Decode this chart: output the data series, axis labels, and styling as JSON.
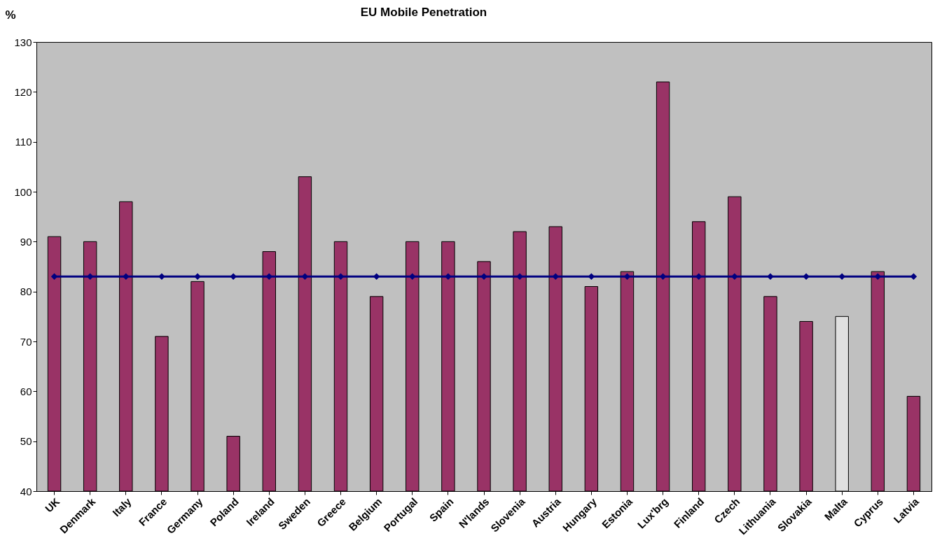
{
  "chart_data": {
    "type": "bar",
    "title": "EU Mobile Penetration",
    "ylabel": "%",
    "categories": [
      "UK",
      "Denmark",
      "Italy",
      "France",
      "Germany",
      "Poland",
      "Ireland",
      "Sweden",
      "Greece",
      "Belgium",
      "Portugal",
      "Spain",
      "N'lands",
      "Slovenia",
      "Austria",
      "Hungary",
      "Estonia",
      "Lux'brg",
      "Finland",
      "Czech",
      "Lithuania",
      "Slovakia",
      "Malta",
      "Cyprus",
      "Latvia"
    ],
    "series": [
      {
        "values": [
          91,
          90,
          98,
          71,
          82,
          51,
          88,
          103,
          90,
          79,
          90,
          90,
          86,
          92,
          93,
          81,
          84,
          122,
          94,
          99,
          79,
          74,
          75,
          84,
          59
        ],
        "colors": [
          "#993366",
          "#993366",
          "#993366",
          "#993366",
          "#993366",
          "#993366",
          "#993366",
          "#993366",
          "#993366",
          "#993366",
          "#993366",
          "#993366",
          "#993366",
          "#993366",
          "#993366",
          "#993366",
          "#993366",
          "#993366",
          "#993366",
          "#993366",
          "#993366",
          "#993366",
          "#e0e0e0",
          "#993366",
          "#993366"
        ]
      },
      {
        "type": "line",
        "color": "#000080",
        "marker": "diamond",
        "values": [
          83,
          83,
          83,
          83,
          83,
          83,
          83,
          83,
          83,
          83,
          83,
          83,
          83,
          83,
          83,
          83,
          83,
          83,
          83,
          83,
          83,
          83,
          83,
          83,
          83
        ]
      }
    ],
    "ylim": [
      40,
      130
    ],
    "yticks": [
      40,
      50,
      60,
      70,
      80,
      90,
      100,
      110,
      120,
      130
    ],
    "grid": false
  }
}
